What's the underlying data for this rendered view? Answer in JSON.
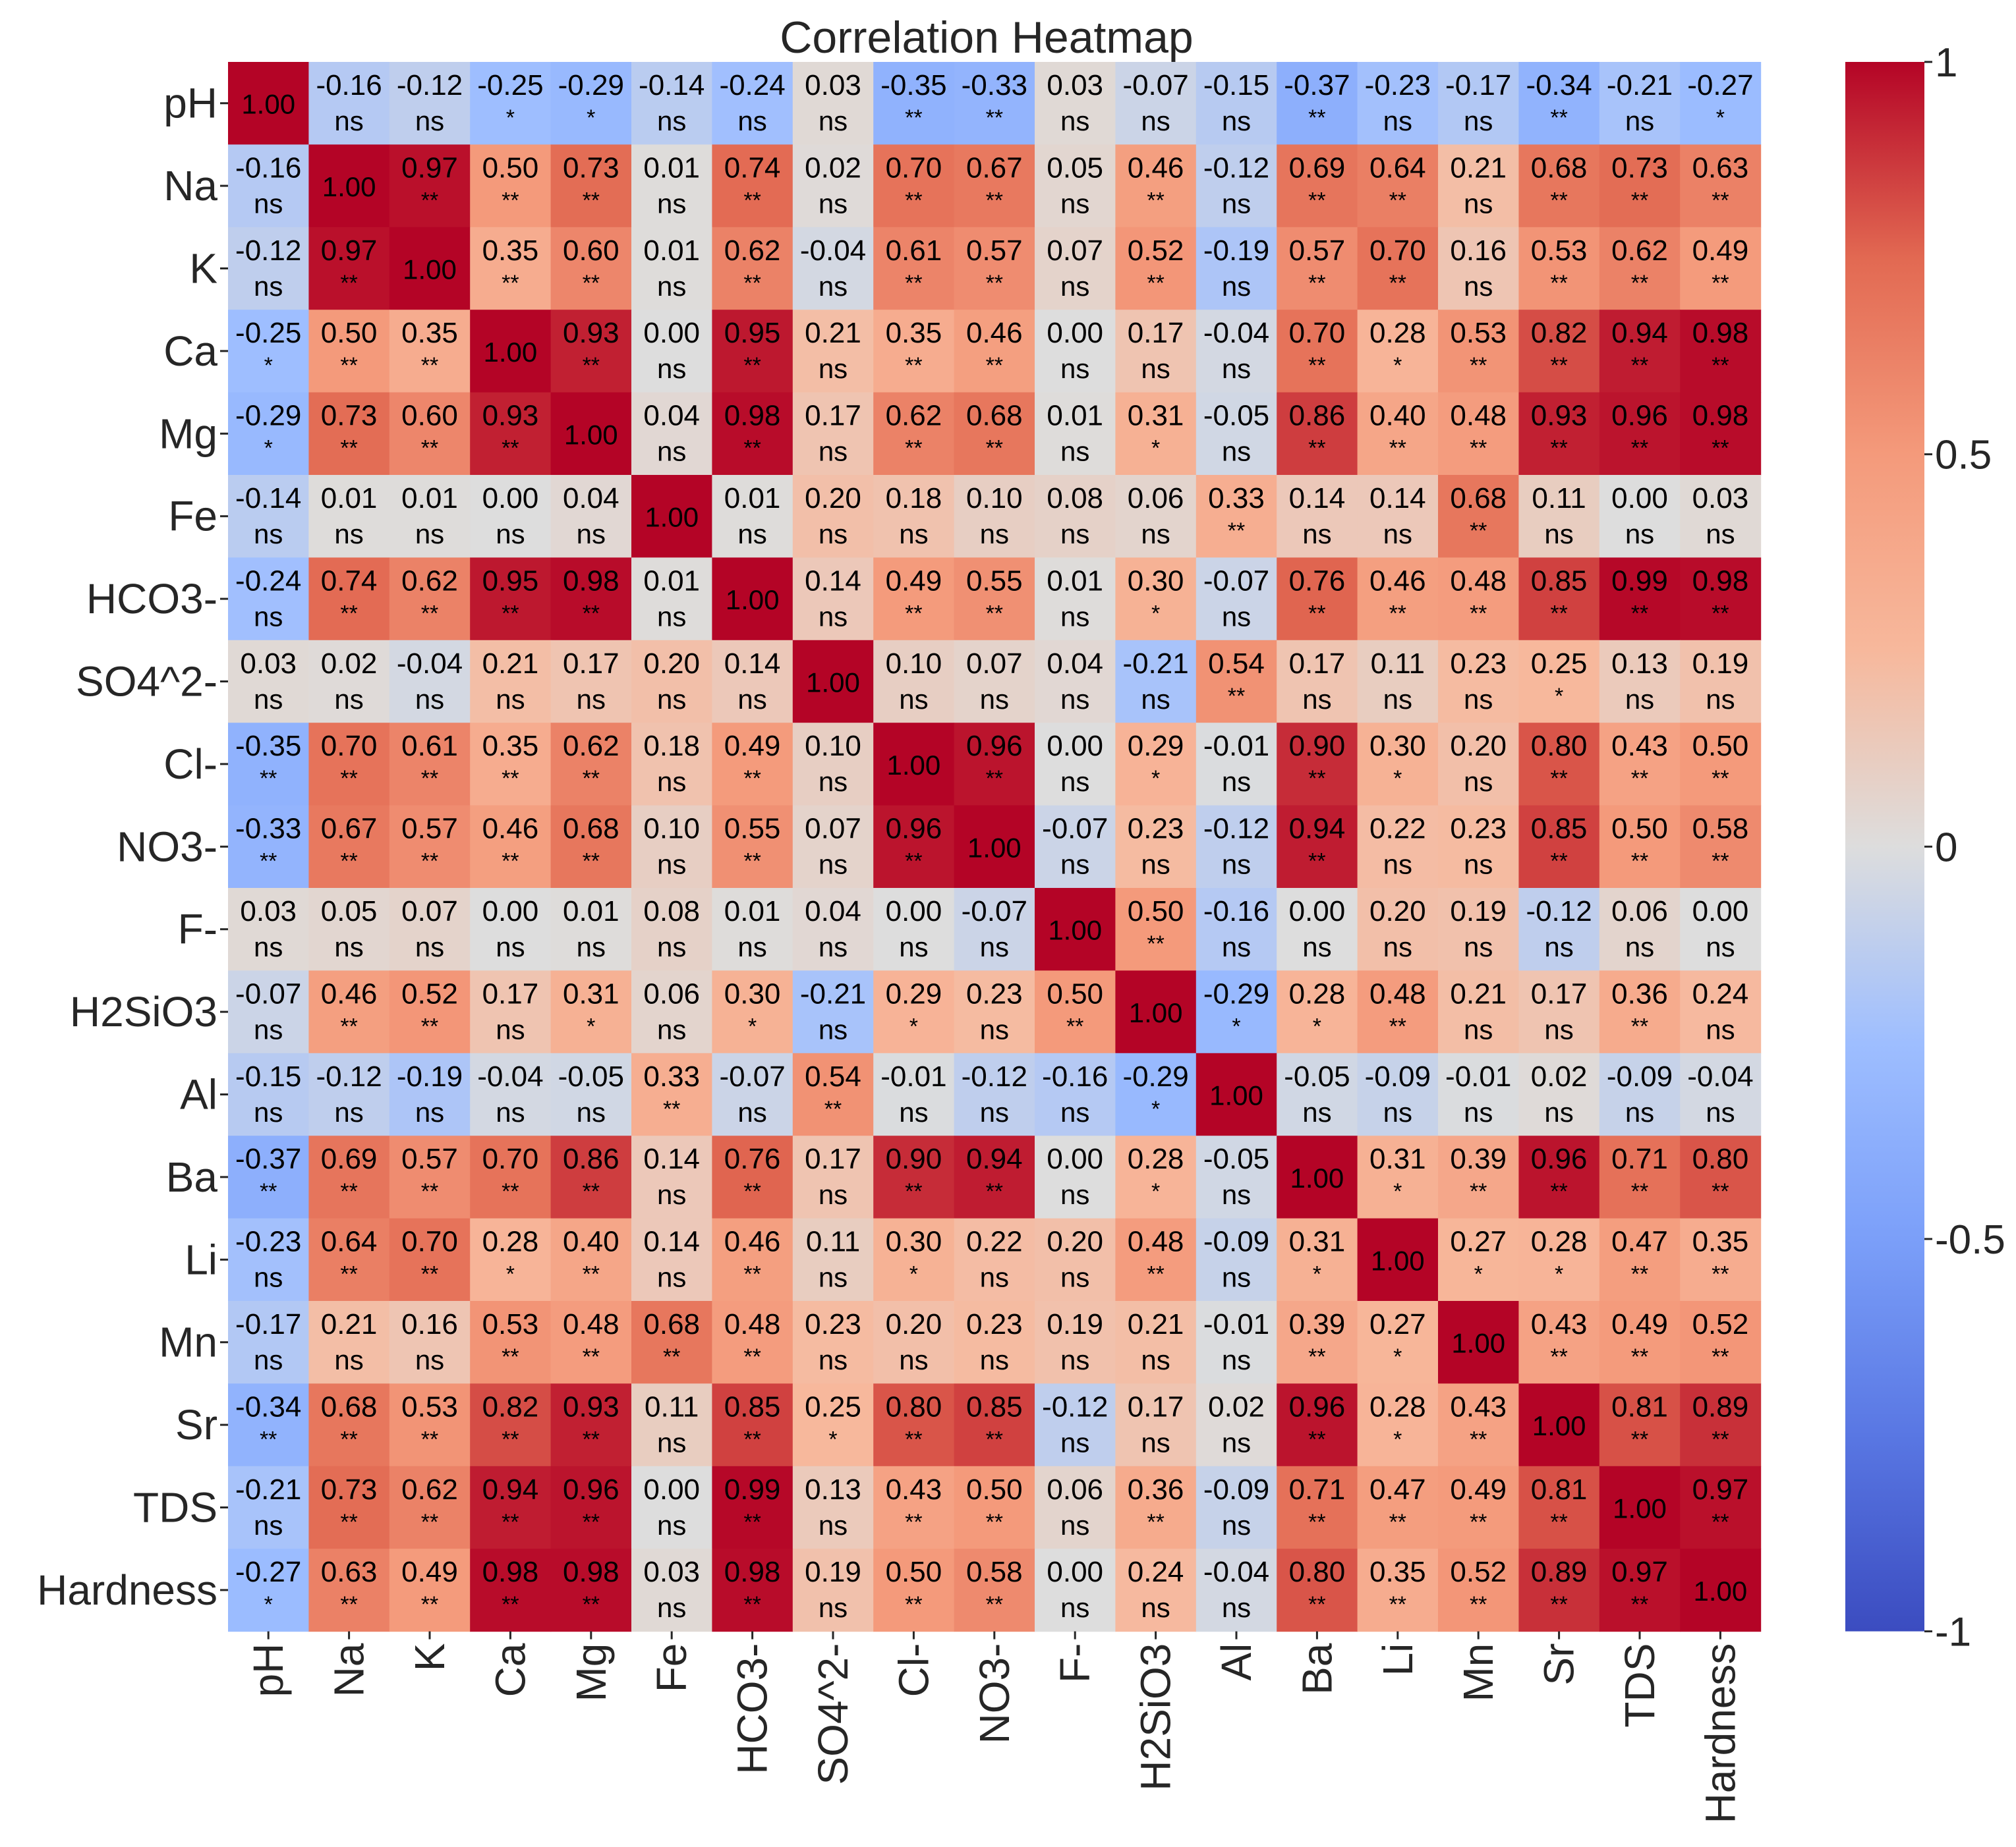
{
  "chart_data": {
    "type": "heatmap",
    "title": "Correlation Heatmap",
    "xlabel": "",
    "ylabel": "",
    "labels": [
      "pH",
      "Na",
      "K",
      "Ca",
      "Mg",
      "Fe",
      "HCO3-",
      "SO4^2-",
      "Cl-",
      "NO3-",
      "F-",
      "H2SiO3",
      "Al",
      "Ba",
      "Li",
      "Mn",
      "Sr",
      "TDS",
      "Hardness"
    ],
    "values": [
      [
        1.0,
        -0.16,
        -0.12,
        -0.25,
        -0.29,
        -0.14,
        -0.24,
        0.03,
        -0.35,
        -0.33,
        0.03,
        -0.07,
        -0.15,
        -0.37,
        -0.23,
        -0.17,
        -0.34,
        -0.21,
        -0.27
      ],
      [
        -0.16,
        1.0,
        0.97,
        0.5,
        0.73,
        0.01,
        0.74,
        0.02,
        0.7,
        0.67,
        0.05,
        0.46,
        -0.12,
        0.69,
        0.64,
        0.21,
        0.68,
        0.73,
        0.63
      ],
      [
        -0.12,
        0.97,
        1.0,
        0.35,
        0.6,
        0.01,
        0.62,
        -0.04,
        0.61,
        0.57,
        0.07,
        0.52,
        -0.19,
        0.57,
        0.7,
        0.16,
        0.53,
        0.62,
        0.49
      ],
      [
        -0.25,
        0.5,
        0.35,
        1.0,
        0.93,
        -0.0,
        0.95,
        0.21,
        0.35,
        0.46,
        -0.0,
        0.17,
        -0.04,
        0.7,
        0.28,
        0.53,
        0.82,
        0.94,
        0.98
      ],
      [
        -0.29,
        0.73,
        0.6,
        0.93,
        1.0,
        0.04,
        0.98,
        0.17,
        0.62,
        0.68,
        0.01,
        0.31,
        -0.05,
        0.86,
        0.4,
        0.48,
        0.93,
        0.96,
        0.98
      ],
      [
        -0.14,
        0.01,
        0.01,
        -0.0,
        0.04,
        1.0,
        0.01,
        0.2,
        0.18,
        0.1,
        0.08,
        0.06,
        0.33,
        0.14,
        0.14,
        0.68,
        0.11,
        0.0,
        0.03
      ],
      [
        -0.24,
        0.74,
        0.62,
        0.95,
        0.98,
        0.01,
        1.0,
        0.14,
        0.49,
        0.55,
        0.01,
        0.3,
        -0.07,
        0.76,
        0.46,
        0.48,
        0.85,
        0.99,
        0.98
      ],
      [
        0.03,
        0.02,
        -0.04,
        0.21,
        0.17,
        0.2,
        0.14,
        1.0,
        0.1,
        0.07,
        0.04,
        -0.21,
        0.54,
        0.17,
        0.11,
        0.23,
        0.25,
        0.13,
        0.19
      ],
      [
        -0.35,
        0.7,
        0.61,
        0.35,
        0.62,
        0.18,
        0.49,
        0.1,
        1.0,
        0.96,
        0.0,
        0.29,
        -0.01,
        0.9,
        0.3,
        0.2,
        0.8,
        0.43,
        0.5
      ],
      [
        -0.33,
        0.67,
        0.57,
        0.46,
        0.68,
        0.1,
        0.55,
        0.07,
        0.96,
        1.0,
        -0.07,
        0.23,
        -0.12,
        0.94,
        0.22,
        0.23,
        0.85,
        0.5,
        0.58
      ],
      [
        0.03,
        0.05,
        0.07,
        -0.0,
        0.01,
        0.08,
        0.01,
        0.04,
        0.0,
        -0.07,
        1.0,
        0.5,
        -0.16,
        -0.0,
        0.2,
        0.19,
        -0.12,
        0.06,
        0.0
      ],
      [
        -0.07,
        0.46,
        0.52,
        0.17,
        0.31,
        0.06,
        0.3,
        -0.21,
        0.29,
        0.23,
        0.5,
        1.0,
        -0.29,
        0.28,
        0.48,
        0.21,
        0.17,
        0.36,
        0.24
      ],
      [
        -0.15,
        -0.12,
        -0.19,
        -0.04,
        -0.05,
        0.33,
        -0.07,
        0.54,
        -0.01,
        -0.12,
        -0.16,
        -0.29,
        1.0,
        -0.05,
        -0.09,
        -0.01,
        0.02,
        -0.09,
        -0.04
      ],
      [
        -0.37,
        0.69,
        0.57,
        0.7,
        0.86,
        0.14,
        0.76,
        0.17,
        0.9,
        0.94,
        -0.0,
        0.28,
        -0.05,
        1.0,
        0.31,
        0.39,
        0.96,
        0.71,
        0.8
      ],
      [
        -0.23,
        0.64,
        0.7,
        0.28,
        0.4,
        0.14,
        0.46,
        0.11,
        0.3,
        0.22,
        0.2,
        0.48,
        -0.09,
        0.31,
        1.0,
        0.27,
        0.28,
        0.47,
        0.35
      ],
      [
        -0.17,
        0.21,
        0.16,
        0.53,
        0.48,
        0.68,
        0.48,
        0.23,
        0.2,
        0.23,
        0.19,
        0.21,
        -0.01,
        0.39,
        0.27,
        1.0,
        0.43,
        0.49,
        0.52
      ],
      [
        -0.34,
        0.68,
        0.53,
        0.82,
        0.93,
        0.11,
        0.85,
        0.25,
        0.8,
        0.85,
        -0.12,
        0.17,
        0.02,
        0.96,
        0.28,
        0.43,
        1.0,
        0.81,
        0.89
      ],
      [
        -0.21,
        0.73,
        0.62,
        0.94,
        0.96,
        0.0,
        0.99,
        0.13,
        0.43,
        0.5,
        0.06,
        0.36,
        -0.09,
        0.71,
        0.47,
        0.49,
        0.81,
        1.0,
        0.97
      ],
      [
        -0.27,
        0.63,
        0.49,
        0.98,
        0.98,
        0.03,
        0.98,
        0.19,
        0.5,
        0.58,
        0.0,
        0.24,
        -0.04,
        0.8,
        0.35,
        0.52,
        0.89,
        0.97,
        1.0
      ]
    ],
    "significance": [
      [
        "",
        "ns",
        "ns",
        "*",
        "*",
        "ns",
        "ns",
        "ns",
        "**",
        "**",
        "ns",
        "ns",
        "ns",
        "**",
        "ns",
        "ns",
        "**",
        "ns",
        "*"
      ],
      [
        "ns",
        "",
        "**",
        "**",
        "**",
        "ns",
        "**",
        "ns",
        "**",
        "**",
        "ns",
        "**",
        "ns",
        "**",
        "**",
        "ns",
        "**",
        "**",
        "**"
      ],
      [
        "ns",
        "**",
        "",
        "**",
        "**",
        "ns",
        "**",
        "ns",
        "**",
        "**",
        "ns",
        "**",
        "ns",
        "**",
        "**",
        "ns",
        "**",
        "**",
        "**"
      ],
      [
        "*",
        "**",
        "**",
        "",
        "**",
        "ns",
        "**",
        "ns",
        "**",
        "**",
        "ns",
        "ns",
        "ns",
        "**",
        "*",
        "**",
        "**",
        "**",
        "**"
      ],
      [
        "*",
        "**",
        "**",
        "**",
        "",
        "ns",
        "**",
        "ns",
        "**",
        "**",
        "ns",
        "*",
        "ns",
        "**",
        "**",
        "**",
        "**",
        "**",
        "**"
      ],
      [
        "ns",
        "ns",
        "ns",
        "ns",
        "ns",
        "",
        "ns",
        "ns",
        "ns",
        "ns",
        "ns",
        "ns",
        "**",
        "ns",
        "ns",
        "**",
        "ns",
        "ns",
        "ns"
      ],
      [
        "ns",
        "**",
        "**",
        "**",
        "**",
        "ns",
        "",
        "ns",
        "**",
        "**",
        "ns",
        "*",
        "ns",
        "**",
        "**",
        "**",
        "**",
        "**",
        "**"
      ],
      [
        "ns",
        "ns",
        "ns",
        "ns",
        "ns",
        "ns",
        "ns",
        "",
        "ns",
        "ns",
        "ns",
        "ns",
        "**",
        "ns",
        "ns",
        "ns",
        "*",
        "ns",
        "ns"
      ],
      [
        "**",
        "**",
        "**",
        "**",
        "**",
        "ns",
        "**",
        "ns",
        "",
        "**",
        "ns",
        "*",
        "ns",
        "**",
        "*",
        "ns",
        "**",
        "**",
        "**"
      ],
      [
        "**",
        "**",
        "**",
        "**",
        "**",
        "ns",
        "**",
        "ns",
        "**",
        "",
        "ns",
        "ns",
        "ns",
        "**",
        "ns",
        "ns",
        "**",
        "**",
        "**"
      ],
      [
        "ns",
        "ns",
        "ns",
        "ns",
        "ns",
        "ns",
        "ns",
        "ns",
        "ns",
        "ns",
        "",
        "**",
        "ns",
        "ns",
        "ns",
        "ns",
        "ns",
        "ns",
        "ns"
      ],
      [
        "ns",
        "**",
        "**",
        "ns",
        "*",
        "ns",
        "*",
        "ns",
        "*",
        "ns",
        "**",
        "",
        "*",
        "*",
        "**",
        "ns",
        "ns",
        "**",
        "ns"
      ],
      [
        "ns",
        "ns",
        "ns",
        "ns",
        "ns",
        "**",
        "ns",
        "**",
        "ns",
        "ns",
        "ns",
        "*",
        "",
        "ns",
        "ns",
        "ns",
        "ns",
        "ns",
        "ns"
      ],
      [
        "**",
        "**",
        "**",
        "**",
        "**",
        "ns",
        "**",
        "ns",
        "**",
        "**",
        "ns",
        "*",
        "ns",
        "",
        "*",
        "**",
        "**",
        "**",
        "**"
      ],
      [
        "ns",
        "**",
        "**",
        "*",
        "**",
        "ns",
        "**",
        "ns",
        "*",
        "ns",
        "ns",
        "**",
        "ns",
        "*",
        "",
        "*",
        "*",
        "**",
        "**"
      ],
      [
        "ns",
        "ns",
        "ns",
        "**",
        "**",
        "**",
        "**",
        "ns",
        "ns",
        "ns",
        "ns",
        "ns",
        "ns",
        "**",
        "*",
        "",
        "**",
        "**",
        "**"
      ],
      [
        "**",
        "**",
        "**",
        "**",
        "**",
        "ns",
        "**",
        "*",
        "**",
        "**",
        "ns",
        "ns",
        "ns",
        "**",
        "*",
        "**",
        "",
        "**",
        "**"
      ],
      [
        "ns",
        "**",
        "**",
        "**",
        "**",
        "ns",
        "**",
        "ns",
        "**",
        "**",
        "ns",
        "**",
        "ns",
        "**",
        "**",
        "**",
        "**",
        "",
        "**"
      ],
      [
        "*",
        "**",
        "**",
        "**",
        "**",
        "ns",
        "**",
        "ns",
        "**",
        "**",
        "ns",
        "ns",
        "ns",
        "**",
        "**",
        "**",
        "**",
        "**",
        ""
      ]
    ],
    "colorbar": {
      "range": [
        -1,
        1
      ],
      "ticks": [
        1,
        0.5,
        0,
        -0.5,
        -1
      ],
      "tick_labels": [
        "1",
        "0.5",
        "0",
        "-0.5",
        "-1"
      ],
      "colormap": "coolwarm"
    },
    "colors": {
      "low": "#3B4CC0",
      "mid": "#DDDDDD",
      "high": "#B40426"
    }
  }
}
